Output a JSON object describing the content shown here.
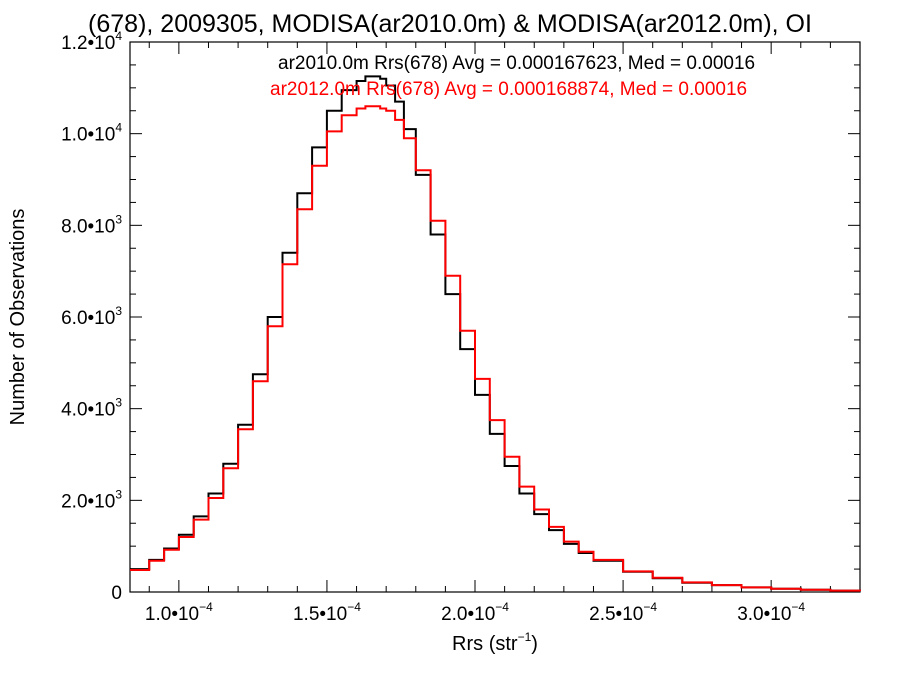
{
  "chart_data": {
    "type": "line",
    "title": "(678), 2009305, MODISA(ar2010.0m) & MODISA(ar2012.0m), OI",
    "xlabel": "Rrs (str",
    "xlabel_exponent": "−1",
    "xlabel_suffix": ")",
    "ylabel": "Number of Observations",
    "xlim": [
      8.35e-05,
      0.00033
    ],
    "ylim": [
      0,
      12000
    ],
    "x_ticks": [
      {
        "value": 0.0001,
        "mantissa": "1.0•10",
        "exponent": "−4"
      },
      {
        "value": 0.00015,
        "mantissa": "1.5•10",
        "exponent": "−4"
      },
      {
        "value": 0.0002,
        "mantissa": "2.0•10",
        "exponent": "−4"
      },
      {
        "value": 0.00025,
        "mantissa": "2.5•10",
        "exponent": "−4"
      },
      {
        "value": 0.0003,
        "mantissa": "3.0•10",
        "exponent": "−4"
      }
    ],
    "y_ticks": [
      {
        "value": 0,
        "mantissa": "0",
        "exponent": ""
      },
      {
        "value": 2000,
        "mantissa": "2.0•10",
        "exponent": "3"
      },
      {
        "value": 4000,
        "mantissa": "4.0•10",
        "exponent": "3"
      },
      {
        "value": 6000,
        "mantissa": "6.0•10",
        "exponent": "3"
      },
      {
        "value": 8000,
        "mantissa": "8.0•10",
        "exponent": "3"
      },
      {
        "value": 10000,
        "mantissa": "1.0•10",
        "exponent": "4"
      },
      {
        "value": 12000,
        "mantissa": "1.2•10",
        "exponent": "4"
      }
    ],
    "grid": false,
    "legend_placement": "top-right",
    "series": [
      {
        "name": "ar2010.0m Rrs(678) Avg = 0.000167623, Med = 0.00016",
        "color": "#000000",
        "x": [
          8.35e-05,
          9e-05,
          9.5e-05,
          0.0001,
          0.000105,
          0.00011,
          0.000115,
          0.00012,
          0.000125,
          0.00013,
          0.000135,
          0.00014,
          0.000145,
          0.00015,
          0.000155,
          0.00016,
          0.000163,
          0.000166,
          0.000168,
          0.00017,
          0.000173,
          0.000176,
          0.00018,
          0.000185,
          0.00019,
          0.000195,
          0.0002,
          0.000205,
          0.00021,
          0.000215,
          0.00022,
          0.000225,
          0.00023,
          0.000235,
          0.00024,
          0.00025,
          0.00026,
          0.00027,
          0.00028,
          0.00029,
          0.0003,
          0.00031,
          0.00032,
          0.00033
        ],
        "y": [
          500,
          700,
          950,
          1250,
          1650,
          2150,
          2800,
          3650,
          4750,
          6000,
          7400,
          8700,
          9700,
          10500,
          10950,
          11150,
          11250,
          11250,
          11200,
          11050,
          10700,
          10100,
          9100,
          7800,
          6500,
          5300,
          4300,
          3450,
          2750,
          2150,
          1700,
          1350,
          1050,
          850,
          680,
          440,
          300,
          200,
          150,
          100,
          70,
          50,
          30,
          20
        ]
      },
      {
        "name": "ar2012.0m Rrs(678) Avg = 0.000168874, Med = 0.00016",
        "color": "#ff0000",
        "x": [
          8.35e-05,
          9e-05,
          9.5e-05,
          0.0001,
          0.000105,
          0.00011,
          0.000115,
          0.00012,
          0.000125,
          0.00013,
          0.000135,
          0.00014,
          0.000145,
          0.00015,
          0.000155,
          0.00016,
          0.000163,
          0.000166,
          0.000168,
          0.00017,
          0.000173,
          0.000176,
          0.00018,
          0.000185,
          0.00019,
          0.000195,
          0.0002,
          0.000205,
          0.00021,
          0.000215,
          0.00022,
          0.000225,
          0.00023,
          0.000235,
          0.00024,
          0.00025,
          0.00026,
          0.00027,
          0.00028,
          0.00029,
          0.0003,
          0.00031,
          0.00032,
          0.00033
        ],
        "y": [
          480,
          680,
          920,
          1200,
          1580,
          2050,
          2700,
          3550,
          4600,
          5800,
          7150,
          8350,
          9300,
          10050,
          10400,
          10550,
          10600,
          10600,
          10550,
          10500,
          10300,
          9900,
          9200,
          8100,
          6900,
          5700,
          4650,
          3750,
          2950,
          2300,
          1800,
          1420,
          1100,
          880,
          700,
          450,
          310,
          210,
          150,
          100,
          70,
          50,
          30,
          20
        ]
      }
    ]
  }
}
